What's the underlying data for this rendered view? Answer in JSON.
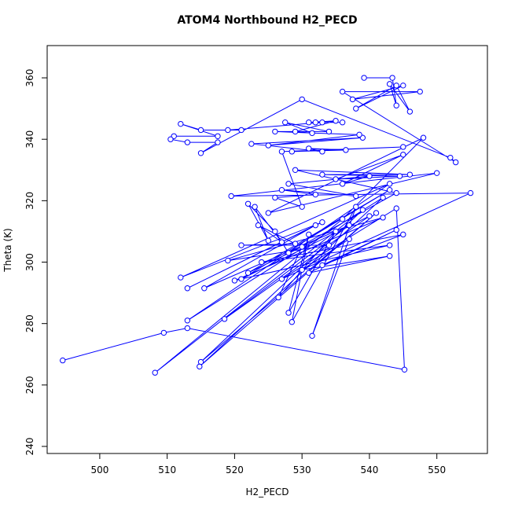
{
  "chart_data": {
    "type": "line",
    "title": "ATOM4 Northbound H2_PECD",
    "x_label": "H2_PECD",
    "y_label": "Theta (K)",
    "series": [
      {
        "color": "#0000ff",
        "x": [
          494.5,
          509.5,
          513,
          545.2,
          544,
          527,
          555,
          519.5,
          550,
          525,
          548,
          536,
          508.2,
          539,
          515,
          541,
          514.8,
          542,
          513,
          543,
          512,
          533,
          513,
          532,
          515.5,
          537,
          518.5,
          540,
          521,
          543,
          522,
          530,
          526.5,
          535,
          528,
          531,
          528.5,
          538,
          531.5,
          537,
          530,
          543,
          531,
          544,
          533,
          545,
          524,
          543,
          520,
          542,
          519,
          534,
          521,
          529,
          523.5,
          527,
          523,
          525,
          522,
          526,
          528,
          544,
          529,
          546,
          533,
          544.5,
          535,
          545,
          536,
          540,
          528,
          538,
          527,
          532,
          526,
          530,
          527,
          545,
          528.5,
          536.5,
          531,
          533,
          522.5,
          539,
          525,
          538.5,
          526,
          534,
          527.5,
          531.5,
          529,
          535,
          531,
          536,
          532,
          533,
          519,
          521,
          515,
          512,
          517.5,
          511,
          510.5,
          513,
          517.5,
          515,
          530,
          552,
          552.8,
          536,
          547.5,
          537.5,
          545,
          538,
          544,
          546,
          543,
          544,
          543.4,
          539.2
        ],
        "values": [
          268,
          277,
          278.5,
          265,
          317.5,
          294.5,
          322.5,
          321.5,
          329,
          316,
          340.5,
          314,
          264,
          317,
          267.5,
          316,
          266,
          321,
          281,
          325.5,
          295,
          313,
          291.5,
          312,
          291.5,
          312,
          281.5,
          315,
          294.5,
          323.5,
          296.5,
          305,
          288.5,
          310,
          283.5,
          309,
          280.5,
          318,
          276,
          307.5,
          297.5,
          302,
          296.5,
          310.5,
          299,
          309,
          300,
          305.5,
          294,
          314.5,
          300.5,
          305.5,
          305.5,
          306,
          312,
          306.5,
          318,
          307,
          319,
          310,
          303,
          322.5,
          330,
          328.5,
          328.5,
          328,
          327,
          335,
          325.5,
          328,
          325.5,
          321.5,
          323.5,
          322,
          321,
          318,
          336,
          337.5,
          336,
          336.5,
          337,
          336,
          338.5,
          340.5,
          338,
          341.5,
          342.5,
          342.5,
          345.5,
          342,
          342.5,
          346,
          345.5,
          345.5,
          345.5,
          345.5,
          343,
          343,
          343,
          345,
          341,
          341,
          340,
          339,
          339,
          335.5,
          353,
          334,
          332.5,
          355.5,
          355.5,
          353,
          357.5,
          350,
          357.5,
          349,
          358,
          351,
          360,
          360
        ]
      }
    ],
    "xlim": [
      492.2,
      557.5
    ],
    "ylim": [
      237.7,
      370.5
    ],
    "xticks": [
      500,
      510,
      520,
      530,
      540,
      550
    ],
    "yticks": [
      240,
      260,
      280,
      300,
      320,
      340,
      360
    ]
  }
}
